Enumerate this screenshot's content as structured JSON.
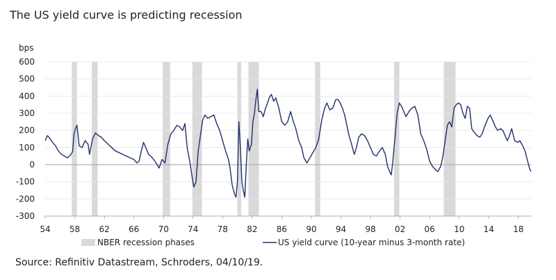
{
  "header": {
    "title": "The US yield curve is predicting recession"
  },
  "footer": {
    "source": "Source: Refinitiv Datastream, Schroders, 04/10/19."
  },
  "colors": {
    "line": "#1f2f6b",
    "recession": "#d9d9d9",
    "grid": "#e6e6e6",
    "axis": "#999999"
  },
  "chart_data": {
    "type": "line",
    "title": "The US yield curve is predicting recession",
    "ylabel": "bps",
    "xlabel": "",
    "xlim": [
      1954,
      2019.8
    ],
    "ylim": [
      -300,
      600
    ],
    "y_ticks": [
      600,
      500,
      400,
      300,
      200,
      100,
      0,
      -100,
      -200,
      -300
    ],
    "x_ticks": [
      {
        "year": 1954,
        "label": "54"
      },
      {
        "year": 1958,
        "label": "58"
      },
      {
        "year": 1962,
        "label": "62"
      },
      {
        "year": 1966,
        "label": "66"
      },
      {
        "year": 1970,
        "label": "70"
      },
      {
        "year": 1974,
        "label": "74"
      },
      {
        "year": 1978,
        "label": "78"
      },
      {
        "year": 1982,
        "label": "82"
      },
      {
        "year": 1986,
        "label": "86"
      },
      {
        "year": 1990,
        "label": "90"
      },
      {
        "year": 1994,
        "label": "94"
      },
      {
        "year": 1998,
        "label": "98"
      },
      {
        "year": 2002,
        "label": "02"
      },
      {
        "year": 2006,
        "label": "06"
      },
      {
        "year": 2010,
        "label": "10"
      },
      {
        "year": 2014,
        "label": "14"
      },
      {
        "year": 2018,
        "label": "18"
      }
    ],
    "grid": "horizontal",
    "legend_position": "bottom",
    "legend": [
      {
        "type": "band",
        "label": "NBER recession phases"
      },
      {
        "type": "line",
        "label": "US yield curve (10-year minus 3-month rate)"
      }
    ],
    "recessions": [
      [
        1957.6,
        1958.3
      ],
      [
        1960.3,
        1961.1
      ],
      [
        1969.9,
        1970.9
      ],
      [
        1973.9,
        1975.2
      ],
      [
        1980.0,
        1980.5
      ],
      [
        1981.5,
        1982.9
      ],
      [
        1990.5,
        1991.2
      ],
      [
        2001.2,
        2001.9
      ],
      [
        2007.9,
        2009.5
      ]
    ],
    "series": [
      {
        "name": "US yield curve (10-year minus 3-month rate)",
        "points": [
          [
            1954.0,
            140
          ],
          [
            1954.3,
            170
          ],
          [
            1954.7,
            150
          ],
          [
            1955.0,
            130
          ],
          [
            1955.4,
            110
          ],
          [
            1955.8,
            80
          ],
          [
            1956.2,
            60
          ],
          [
            1956.6,
            50
          ],
          [
            1957.0,
            40
          ],
          [
            1957.4,
            55
          ],
          [
            1957.7,
            75
          ],
          [
            1957.9,
            180
          ],
          [
            1958.1,
            210
          ],
          [
            1958.3,
            230
          ],
          [
            1958.6,
            110
          ],
          [
            1959.0,
            100
          ],
          [
            1959.4,
            140
          ],
          [
            1959.8,
            120
          ],
          [
            1960.0,
            60
          ],
          [
            1960.4,
            150
          ],
          [
            1960.8,
            185
          ],
          [
            1961.2,
            170
          ],
          [
            1961.6,
            160
          ],
          [
            1962.0,
            140
          ],
          [
            1962.5,
            120
          ],
          [
            1963.0,
            100
          ],
          [
            1963.5,
            80
          ],
          [
            1964.0,
            70
          ],
          [
            1964.5,
            60
          ],
          [
            1965.0,
            50
          ],
          [
            1965.5,
            40
          ],
          [
            1966.0,
            30
          ],
          [
            1966.4,
            10
          ],
          [
            1966.7,
            20
          ],
          [
            1967.0,
            80
          ],
          [
            1967.3,
            130
          ],
          [
            1967.6,
            100
          ],
          [
            1968.0,
            60
          ],
          [
            1968.5,
            40
          ],
          [
            1969.0,
            10
          ],
          [
            1969.4,
            -20
          ],
          [
            1969.8,
            30
          ],
          [
            1970.2,
            10
          ],
          [
            1970.6,
            120
          ],
          [
            1971.0,
            180
          ],
          [
            1971.4,
            200
          ],
          [
            1971.8,
            230
          ],
          [
            1972.2,
            220
          ],
          [
            1972.6,
            200
          ],
          [
            1972.9,
            240
          ],
          [
            1973.2,
            100
          ],
          [
            1973.6,
            10
          ],
          [
            1973.9,
            -80
          ],
          [
            1974.1,
            -130
          ],
          [
            1974.4,
            -100
          ],
          [
            1974.7,
            80
          ],
          [
            1975.0,
            170
          ],
          [
            1975.3,
            260
          ],
          [
            1975.6,
            290
          ],
          [
            1976.0,
            270
          ],
          [
            1976.4,
            280
          ],
          [
            1976.8,
            290
          ],
          [
            1977.2,
            240
          ],
          [
            1977.6,
            200
          ],
          [
            1978.0,
            140
          ],
          [
            1978.4,
            80
          ],
          [
            1978.8,
            30
          ],
          [
            1979.0,
            -20
          ],
          [
            1979.3,
            -120
          ],
          [
            1979.6,
            -170
          ],
          [
            1979.8,
            -190
          ],
          [
            1980.0,
            -100
          ],
          [
            1980.2,
            250
          ],
          [
            1980.4,
            100
          ],
          [
            1980.6,
            -100
          ],
          [
            1980.8,
            -150
          ],
          [
            1981.0,
            -190
          ],
          [
            1981.2,
            0
          ],
          [
            1981.4,
            150
          ],
          [
            1981.6,
            80
          ],
          [
            1981.9,
            120
          ],
          [
            1982.1,
            250
          ],
          [
            1982.3,
            300
          ],
          [
            1982.5,
            380
          ],
          [
            1982.7,
            440
          ],
          [
            1982.9,
            310
          ],
          [
            1983.2,
            310
          ],
          [
            1983.5,
            280
          ],
          [
            1983.8,
            330
          ],
          [
            1984.0,
            350
          ],
          [
            1984.3,
            390
          ],
          [
            1984.6,
            410
          ],
          [
            1984.9,
            370
          ],
          [
            1985.2,
            390
          ],
          [
            1985.6,
            330
          ],
          [
            1986.0,
            250
          ],
          [
            1986.4,
            230
          ],
          [
            1986.8,
            250
          ],
          [
            1987.2,
            310
          ],
          [
            1987.5,
            260
          ],
          [
            1987.9,
            210
          ],
          [
            1988.3,
            140
          ],
          [
            1988.7,
            100
          ],
          [
            1989.0,
            40
          ],
          [
            1989.4,
            10
          ],
          [
            1989.8,
            40
          ],
          [
            1990.2,
            70
          ],
          [
            1990.6,
            100
          ],
          [
            1991.0,
            150
          ],
          [
            1991.4,
            260
          ],
          [
            1991.8,
            330
          ],
          [
            1992.1,
            360
          ],
          [
            1992.5,
            320
          ],
          [
            1992.9,
            330
          ],
          [
            1993.3,
            380
          ],
          [
            1993.6,
            380
          ],
          [
            1993.9,
            360
          ],
          [
            1994.2,
            330
          ],
          [
            1994.5,
            290
          ],
          [
            1994.8,
            230
          ],
          [
            1995.1,
            170
          ],
          [
            1995.5,
            110
          ],
          [
            1995.8,
            60
          ],
          [
            1996.1,
            100
          ],
          [
            1996.4,
            160
          ],
          [
            1996.8,
            180
          ],
          [
            1997.2,
            170
          ],
          [
            1997.6,
            140
          ],
          [
            1998.0,
            100
          ],
          [
            1998.4,
            60
          ],
          [
            1998.8,
            50
          ],
          [
            1999.2,
            80
          ],
          [
            1999.6,
            100
          ],
          [
            2000.0,
            60
          ],
          [
            2000.3,
            -10
          ],
          [
            2000.6,
            -40
          ],
          [
            2000.8,
            -60
          ],
          [
            2001.0,
            10
          ],
          [
            2001.3,
            150
          ],
          [
            2001.6,
            300
          ],
          [
            2001.9,
            360
          ],
          [
            2002.2,
            340
          ],
          [
            2002.5,
            310
          ],
          [
            2002.8,
            280
          ],
          [
            2003.2,
            310
          ],
          [
            2003.6,
            330
          ],
          [
            2004.0,
            340
          ],
          [
            2004.4,
            290
          ],
          [
            2004.8,
            180
          ],
          [
            2005.2,
            140
          ],
          [
            2005.6,
            90
          ],
          [
            2006.0,
            20
          ],
          [
            2006.4,
            -10
          ],
          [
            2006.8,
            -30
          ],
          [
            2007.1,
            -40
          ],
          [
            2007.5,
            -10
          ],
          [
            2007.8,
            50
          ],
          [
            2008.1,
            140
          ],
          [
            2008.4,
            230
          ],
          [
            2008.7,
            250
          ],
          [
            2009.0,
            220
          ],
          [
            2009.3,
            330
          ],
          [
            2009.6,
            350
          ],
          [
            2009.9,
            360
          ],
          [
            2010.2,
            350
          ],
          [
            2010.5,
            300
          ],
          [
            2010.8,
            270
          ],
          [
            2011.1,
            340
          ],
          [
            2011.4,
            330
          ],
          [
            2011.7,
            210
          ],
          [
            2012.0,
            190
          ],
          [
            2012.4,
            170
          ],
          [
            2012.8,
            160
          ],
          [
            2013.1,
            180
          ],
          [
            2013.5,
            230
          ],
          [
            2013.9,
            270
          ],
          [
            2014.2,
            290
          ],
          [
            2014.6,
            250
          ],
          [
            2014.9,
            220
          ],
          [
            2015.2,
            200
          ],
          [
            2015.6,
            210
          ],
          [
            2015.9,
            200
          ],
          [
            2016.2,
            170
          ],
          [
            2016.5,
            140
          ],
          [
            2016.8,
            170
          ],
          [
            2017.1,
            210
          ],
          [
            2017.5,
            140
          ],
          [
            2017.9,
            130
          ],
          [
            2018.2,
            140
          ],
          [
            2018.6,
            110
          ],
          [
            2018.9,
            80
          ],
          [
            2019.2,
            30
          ],
          [
            2019.5,
            -20
          ],
          [
            2019.7,
            -40
          ]
        ]
      }
    ]
  }
}
